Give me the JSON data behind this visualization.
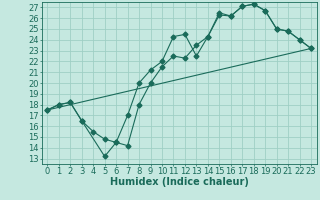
{
  "title": "",
  "xlabel": "Humidex (Indice chaleur)",
  "ylabel": "",
  "xlim": [
    -0.5,
    23.5
  ],
  "ylim": [
    12.5,
    27.5
  ],
  "yticks": [
    13,
    14,
    15,
    16,
    17,
    18,
    19,
    20,
    21,
    22,
    23,
    24,
    25,
    26,
    27
  ],
  "xticks": [
    0,
    1,
    2,
    3,
    4,
    5,
    6,
    7,
    8,
    9,
    10,
    11,
    12,
    13,
    14,
    15,
    16,
    17,
    18,
    19,
    20,
    21,
    22,
    23
  ],
  "bg_color": "#c5e8e0",
  "grid_color": "#9fcfc5",
  "line_color": "#1a6b5a",
  "line1_x": [
    0,
    1,
    2,
    3,
    4,
    5,
    6,
    7,
    8,
    9,
    10,
    11,
    12,
    13,
    14,
    15,
    16,
    17,
    18,
    19,
    20,
    21,
    22,
    23
  ],
  "line1_y": [
    17.5,
    18.0,
    18.2,
    16.5,
    15.5,
    14.8,
    14.5,
    14.2,
    18.0,
    20.0,
    21.5,
    22.5,
    22.3,
    23.5,
    24.3,
    26.3,
    26.2,
    27.1,
    27.3,
    26.7,
    25.0,
    24.8,
    24.0,
    23.2
  ],
  "line2_x": [
    0,
    1,
    2,
    3,
    5,
    6,
    7,
    8,
    9,
    10,
    11,
    12,
    13,
    14,
    15,
    16,
    17,
    18,
    19,
    20,
    21,
    22,
    23
  ],
  "line2_y": [
    17.5,
    18.0,
    18.2,
    16.5,
    13.2,
    14.5,
    17.0,
    20.0,
    21.2,
    22.0,
    24.3,
    24.5,
    22.5,
    24.3,
    26.5,
    26.2,
    27.1,
    27.3,
    26.7,
    25.0,
    24.8,
    24.0,
    23.2
  ],
  "line3_x": [
    0,
    23
  ],
  "line3_y": [
    17.5,
    23.2
  ],
  "marker_size": 2.5,
  "font_size": 6
}
